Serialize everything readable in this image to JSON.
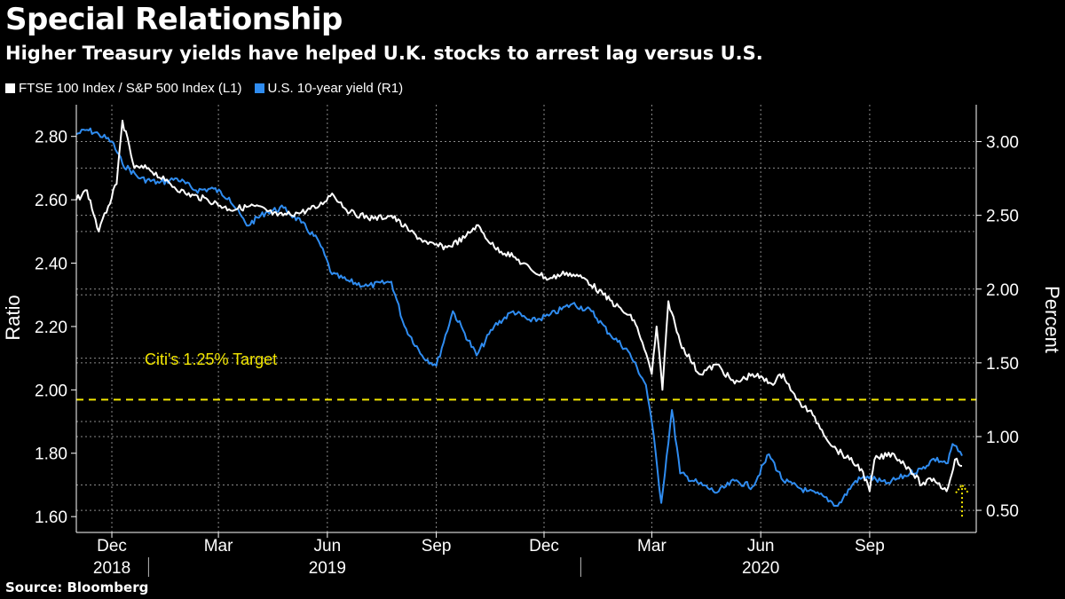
{
  "title": "Special Relationship",
  "subtitle": "Higher Treasury yields have helped U.K. stocks to arrest lag versus U.S.",
  "source": "Source: Bloomberg",
  "colors": {
    "background": "#000000",
    "ratio": "#ffffff",
    "yield": "#2f8cf0",
    "target": "#f2e600",
    "grid": "#8a8a8a"
  },
  "chart_data": {
    "type": "line",
    "x_axis": {
      "type": "date",
      "range": [
        "2018-11-01",
        "2020-11-30"
      ],
      "month_ticks": [
        {
          "date": "2018-12-01",
          "label": "Dec"
        },
        {
          "date": "2019-03-01",
          "label": "Mar"
        },
        {
          "date": "2019-06-01",
          "label": "Jun"
        },
        {
          "date": "2019-09-01",
          "label": "Sep"
        },
        {
          "date": "2019-12-01",
          "label": "Dec"
        },
        {
          "date": "2020-03-01",
          "label": "Mar"
        },
        {
          "date": "2020-06-01",
          "label": "Jun"
        },
        {
          "date": "2020-09-01",
          "label": "Sep"
        }
      ],
      "year_labels": [
        {
          "date": "2018-12-01",
          "label": "2018"
        },
        {
          "date": "2019-06-01",
          "label": "2019"
        },
        {
          "date": "2020-06-01",
          "label": "2020"
        }
      ],
      "year_dividers": [
        "2019-01-01",
        "2020-01-01"
      ]
    },
    "y_left": {
      "label": "Ratio",
      "range": [
        1.55,
        2.9
      ],
      "ticks": [
        "1.60",
        "1.80",
        "2.00",
        "2.20",
        "2.40",
        "2.60",
        "2.80"
      ]
    },
    "y_right": {
      "label": "Percent",
      "range": [
        0.35,
        3.25
      ],
      "ticks": [
        "0.50",
        "1.00",
        "1.50",
        "2.00",
        "2.50",
        "3.00"
      ]
    },
    "grid": true,
    "legend_position": "top-left",
    "series": [
      {
        "name": "FTSE 100 Index / S&P 500 Index (L1)",
        "axis": "left",
        "points": [
          [
            "2018-11-01",
            2.6
          ],
          [
            "2018-11-10",
            2.63
          ],
          [
            "2018-11-20",
            2.5
          ],
          [
            "2018-11-28",
            2.58
          ],
          [
            "2018-12-05",
            2.65
          ],
          [
            "2018-12-10",
            2.85
          ],
          [
            "2018-12-20",
            2.7
          ],
          [
            "2019-01-01",
            2.7
          ],
          [
            "2019-01-15",
            2.66
          ],
          [
            "2019-02-01",
            2.62
          ],
          [
            "2019-02-20",
            2.6
          ],
          [
            "2019-03-10",
            2.57
          ],
          [
            "2019-04-01",
            2.58
          ],
          [
            "2019-04-20",
            2.55
          ],
          [
            "2019-05-10",
            2.56
          ],
          [
            "2019-05-25",
            2.58
          ],
          [
            "2019-06-05",
            2.62
          ],
          [
            "2019-06-20",
            2.56
          ],
          [
            "2019-07-10",
            2.54
          ],
          [
            "2019-07-25",
            2.55
          ],
          [
            "2019-08-10",
            2.5
          ],
          [
            "2019-08-25",
            2.46
          ],
          [
            "2019-09-10",
            2.45
          ],
          [
            "2019-09-25",
            2.48
          ],
          [
            "2019-10-05",
            2.52
          ],
          [
            "2019-10-20",
            2.45
          ],
          [
            "2019-11-05",
            2.42
          ],
          [
            "2019-11-20",
            2.38
          ],
          [
            "2019-12-05",
            2.35
          ],
          [
            "2019-12-20",
            2.37
          ],
          [
            "2020-01-05",
            2.35
          ],
          [
            "2020-01-20",
            2.3
          ],
          [
            "2020-02-05",
            2.25
          ],
          [
            "2020-02-15",
            2.22
          ],
          [
            "2020-02-22",
            2.15
          ],
          [
            "2020-03-01",
            2.05
          ],
          [
            "2020-03-05",
            2.2
          ],
          [
            "2020-03-10",
            2.0
          ],
          [
            "2020-03-15",
            2.28
          ],
          [
            "2020-03-25",
            2.15
          ],
          [
            "2020-04-10",
            2.05
          ],
          [
            "2020-04-25",
            2.08
          ],
          [
            "2020-05-10",
            2.02
          ],
          [
            "2020-05-25",
            2.05
          ],
          [
            "2020-06-10",
            2.02
          ],
          [
            "2020-06-20",
            2.05
          ],
          [
            "2020-07-01",
            1.97
          ],
          [
            "2020-07-15",
            1.92
          ],
          [
            "2020-08-01",
            1.82
          ],
          [
            "2020-08-15",
            1.78
          ],
          [
            "2020-08-25",
            1.75
          ],
          [
            "2020-09-01",
            1.68
          ],
          [
            "2020-09-05",
            1.78
          ],
          [
            "2020-09-20",
            1.8
          ],
          [
            "2020-10-05",
            1.75
          ],
          [
            "2020-10-15",
            1.7
          ],
          [
            "2020-10-25",
            1.72
          ],
          [
            "2020-11-05",
            1.68
          ],
          [
            "2020-11-12",
            1.78
          ],
          [
            "2020-11-18",
            1.76
          ]
        ]
      },
      {
        "name": "U.S. 10-year yield (R1)",
        "axis": "right",
        "points": [
          [
            "2018-11-01",
            3.05
          ],
          [
            "2018-11-10",
            3.08
          ],
          [
            "2018-11-20",
            3.05
          ],
          [
            "2018-12-01",
            3.0
          ],
          [
            "2018-12-10",
            2.85
          ],
          [
            "2018-12-25",
            2.75
          ],
          [
            "2019-01-10",
            2.72
          ],
          [
            "2019-01-25",
            2.75
          ],
          [
            "2019-02-10",
            2.67
          ],
          [
            "2019-02-25",
            2.68
          ],
          [
            "2019-03-10",
            2.62
          ],
          [
            "2019-03-25",
            2.43
          ],
          [
            "2019-04-10",
            2.52
          ],
          [
            "2019-04-25",
            2.55
          ],
          [
            "2019-05-10",
            2.45
          ],
          [
            "2019-05-25",
            2.32
          ],
          [
            "2019-06-05",
            2.1
          ],
          [
            "2019-06-20",
            2.05
          ],
          [
            "2019-07-05",
            2.02
          ],
          [
            "2019-07-25",
            2.05
          ],
          [
            "2019-08-05",
            1.75
          ],
          [
            "2019-08-20",
            1.55
          ],
          [
            "2019-09-01",
            1.48
          ],
          [
            "2019-09-15",
            1.85
          ],
          [
            "2019-09-25",
            1.7
          ],
          [
            "2019-10-05",
            1.55
          ],
          [
            "2019-10-20",
            1.75
          ],
          [
            "2019-11-05",
            1.85
          ],
          [
            "2019-11-20",
            1.78
          ],
          [
            "2019-12-05",
            1.82
          ],
          [
            "2019-12-25",
            1.9
          ],
          [
            "2020-01-10",
            1.85
          ],
          [
            "2020-01-25",
            1.7
          ],
          [
            "2020-02-10",
            1.58
          ],
          [
            "2020-02-25",
            1.35
          ],
          [
            "2020-03-01",
            1.1
          ],
          [
            "2020-03-09",
            0.55
          ],
          [
            "2020-03-18",
            1.18
          ],
          [
            "2020-03-25",
            0.75
          ],
          [
            "2020-04-10",
            0.68
          ],
          [
            "2020-04-25",
            0.62
          ],
          [
            "2020-05-10",
            0.7
          ],
          [
            "2020-05-25",
            0.66
          ],
          [
            "2020-06-08",
            0.88
          ],
          [
            "2020-06-20",
            0.7
          ],
          [
            "2020-07-10",
            0.63
          ],
          [
            "2020-07-25",
            0.59
          ],
          [
            "2020-08-05",
            0.53
          ],
          [
            "2020-08-20",
            0.7
          ],
          [
            "2020-08-30",
            0.73
          ],
          [
            "2020-09-15",
            0.68
          ],
          [
            "2020-10-05",
            0.75
          ],
          [
            "2020-10-15",
            0.78
          ],
          [
            "2020-10-25",
            0.85
          ],
          [
            "2020-11-06",
            0.82
          ],
          [
            "2020-11-10",
            0.95
          ],
          [
            "2020-11-18",
            0.87
          ]
        ]
      }
    ],
    "annotations": [
      {
        "text": "Citi's 1.25% Target",
        "type": "horizontal-line",
        "axis": "right",
        "value": 1.25,
        "style": "dashed"
      },
      {
        "text": "",
        "type": "arrow",
        "axis": "left",
        "date": "2020-11-18",
        "from": 1.6,
        "to": 1.7,
        "style": "dotted-up"
      }
    ]
  }
}
